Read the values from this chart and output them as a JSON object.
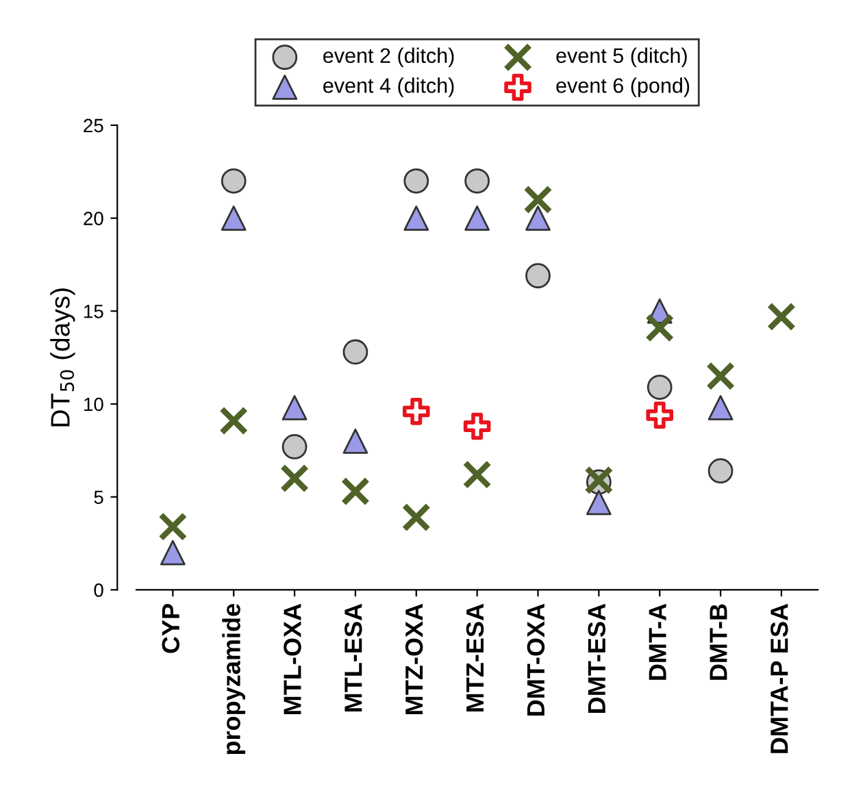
{
  "chart_data": {
    "type": "scatter",
    "ylabel": "DT$_{50}$ (days)",
    "categories": [
      "CYP",
      "propyzamide",
      "MTL-OXA",
      "MTL-ESA",
      "MTZ-OXA",
      "MTZ-ESA",
      "DMT-OXA",
      "DMT-ESA",
      "DMT-A",
      "DMT-B",
      "DMTA-P ESA"
    ],
    "series": [
      {
        "name": "event 2 (ditch)",
        "color": "#c8c8c8",
        "marker": "circle",
        "values": [
          null,
          22.0,
          7.7,
          12.8,
          22.0,
          22.0,
          16.9,
          5.8,
          10.9,
          6.4,
          null
        ]
      },
      {
        "name": "event 4 (ditch)",
        "color": "#9a9ae8",
        "marker": "triangle",
        "values": [
          2.0,
          20.0,
          9.8,
          8.0,
          20.0,
          20.0,
          20.0,
          4.7,
          15.0,
          9.8,
          null
        ]
      },
      {
        "name": "event 5 (ditch)",
        "color": "#4f6228",
        "marker": "cross",
        "values": [
          3.4,
          9.1,
          6.0,
          5.3,
          3.9,
          6.2,
          21.0,
          5.9,
          14.1,
          11.5,
          14.7
        ]
      },
      {
        "name": "event 6 (pond)",
        "color": "#e8141e",
        "marker": "plus",
        "values": [
          null,
          null,
          null,
          null,
          9.6,
          8.8,
          null,
          null,
          9.4,
          null,
          null
        ]
      }
    ],
    "ylim": [
      0,
      25
    ],
    "yticks": [
      0,
      5,
      10,
      15,
      20,
      25
    ],
    "legend": "top"
  }
}
